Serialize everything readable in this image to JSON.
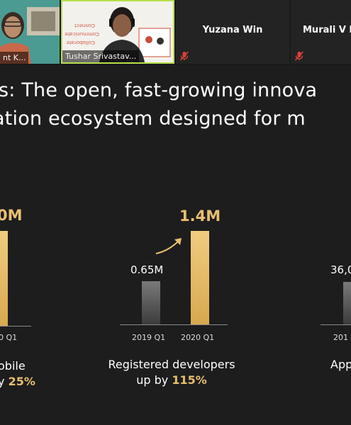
{
  "participants": [
    {
      "name": "nt K...",
      "video": true
    },
    {
      "name": "Tushar Srivastav...",
      "video": true,
      "board_words": [
        "Connect",
        "Communicate",
        "Collaborate"
      ]
    },
    {
      "name": "Yuzana Win",
      "video": false,
      "muted": true
    },
    {
      "name": "Murali V H",
      "video": false,
      "muted": true
    }
  ],
  "slide": {
    "headline_line1": "s: The open, fast-growing innova",
    "headline_line2": "ation ecosystem designed for m",
    "panels": [
      {
        "big_value": "0M",
        "tick_right": "0 Q1",
        "caption_line1": "obile",
        "caption_line2_prefix": "y",
        "caption_pct": "25%"
      },
      {
        "small_value": "0.65M",
        "big_value": "1.4M",
        "tick_left": "2019 Q1",
        "tick_right": "2020 Q1",
        "caption_line1": "Registered developers",
        "caption_line2_prefix": "up by",
        "caption_pct": "115%"
      },
      {
        "small_value": "36,0",
        "tick_left": "201",
        "caption_line1": "App"
      }
    ]
  },
  "chart_data": [
    {
      "type": "bar",
      "categories": [
        "2019 Q1",
        "2020 Q1"
      ],
      "values": [
        0.65,
        1.4
      ],
      "unit": "M",
      "title": "Registered developers",
      "xlabel": "",
      "ylabel": ""
    }
  ],
  "colors": {
    "accent_gold": "#e8c070",
    "background": "#1d1d1d",
    "active_speaker_border": "#b7e04a",
    "mute_red": "#e0403a"
  }
}
